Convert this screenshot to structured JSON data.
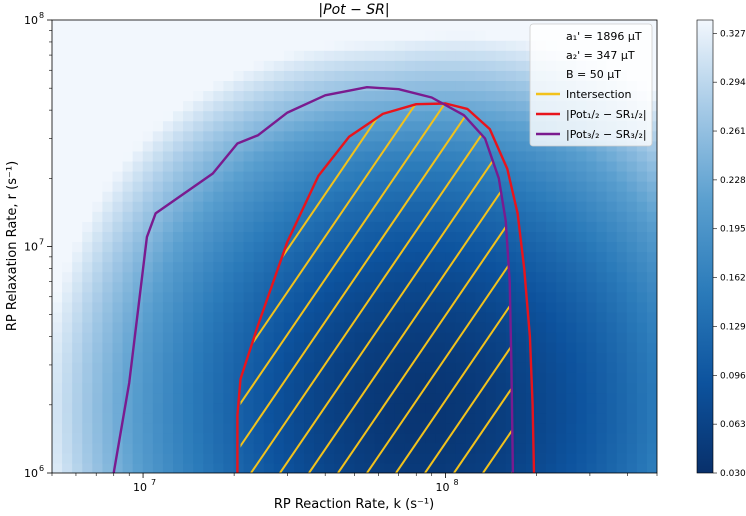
{
  "chart_data": {
    "type": "heatmap",
    "title": "|Pot − SR|",
    "xlabel": "RP Reaction Rate, k (s⁻¹)",
    "ylabel": "RP Relaxation Rate, r (s⁻¹)",
    "x_scale": "log",
    "y_scale": "log",
    "xlim": [
      5000000,
      500000000
    ],
    "ylim": [
      1000000,
      100000000
    ],
    "x_major_ticks": [
      {
        "value": 10000000,
        "base": "10",
        "exp": "7"
      },
      {
        "value": 100000000,
        "base": "10",
        "exp": "8"
      }
    ],
    "y_major_ticks": [
      {
        "value": 1000000,
        "base": "10",
        "exp": "6"
      },
      {
        "value": 10000000,
        "base": "10",
        "exp": "7"
      },
      {
        "value": 100000000,
        "base": "10",
        "exp": "8"
      }
    ],
    "colorbar": {
      "min": 0.03,
      "max": 0.336,
      "colormap": "Blues_r",
      "ticks": [
        "0.030",
        "0.063",
        "0.096",
        "0.129",
        "0.162",
        "0.195",
        "0.228",
        "0.261",
        "0.294",
        "0.327"
      ]
    },
    "legend": {
      "placement": "top-right",
      "parameters": [
        "a₁' = 1896 μT",
        "a₂' = 347 μT",
        "B = 50 μT"
      ],
      "entries": [
        {
          "label": "Intersection",
          "color": "#f2c21b"
        },
        {
          "label": "|Pot₁/₂ − SR₁/₂|",
          "color": "#e8141c"
        },
        {
          "label": "|Pot₃/₂ − SR₃/₂|",
          "color": "#7a1b8f"
        }
      ]
    },
    "series": [
      {
        "name": "|Pot₁/₂ − SR₁/₂|",
        "color": "#e8141c",
        "points": [
          [
            20500000,
            1000000
          ],
          [
            20500000,
            1800000
          ],
          [
            21000000,
            2600000
          ],
          [
            24000000,
            4500000
          ],
          [
            30000000,
            10500000
          ],
          [
            38000000,
            20500000
          ],
          [
            48000000,
            30500000
          ],
          [
            62000000,
            38500000
          ],
          [
            80000000,
            42500000
          ],
          [
            100000000,
            42800000
          ],
          [
            118000000,
            40500000
          ],
          [
            140000000,
            33000000
          ],
          [
            160000000,
            22000000
          ],
          [
            173000000,
            14000000
          ],
          [
            182000000,
            8000000
          ],
          [
            190000000,
            4000000
          ],
          [
            194000000,
            2000000
          ],
          [
            196000000,
            1000000
          ]
        ]
      },
      {
        "name": "|Pot₃/₂ − SR₃/₂|",
        "color": "#7a1b8f",
        "points": [
          [
            8000000,
            1000000
          ],
          [
            9000000,
            2500000
          ],
          [
            10300000,
            11000000
          ],
          [
            11000000,
            14000000
          ],
          [
            17000000,
            21000000
          ],
          [
            20500000,
            28500000
          ],
          [
            24000000,
            31000000
          ],
          [
            30000000,
            39000000
          ],
          [
            40000000,
            46500000
          ],
          [
            55000000,
            50500000
          ],
          [
            70000000,
            49500000
          ],
          [
            90000000,
            45500000
          ],
          [
            115000000,
            38000000
          ],
          [
            135000000,
            30000000
          ],
          [
            150000000,
            20000000
          ],
          [
            158000000,
            13000000
          ],
          [
            163000000,
            7000000
          ],
          [
            165000000,
            3000000
          ],
          [
            167000000,
            1000000
          ]
        ]
      }
    ],
    "intersection_region": {
      "boundary": [
        [
          21000000,
          1000000
        ],
        [
          21000000,
          2200000
        ],
        [
          24000000,
          4500000
        ],
        [
          30000000,
          10500000
        ],
        [
          38000000,
          20500000
        ],
        [
          48000000,
          30500000
        ],
        [
          62000000,
          38500000
        ],
        [
          80000000,
          42500000
        ],
        [
          95000000,
          42800000
        ],
        [
          110000000,
          40000000
        ],
        [
          135000000,
          30000000
        ],
        [
          150000000,
          20000000
        ],
        [
          158000000,
          13000000
        ],
        [
          163000000,
          7000000
        ],
        [
          165000000,
          3000000
        ],
        [
          167000000,
          1000000
        ]
      ],
      "hatch_color": "#f2c21b"
    },
    "minimum_at": [
      85000000,
      1900000
    ]
  }
}
